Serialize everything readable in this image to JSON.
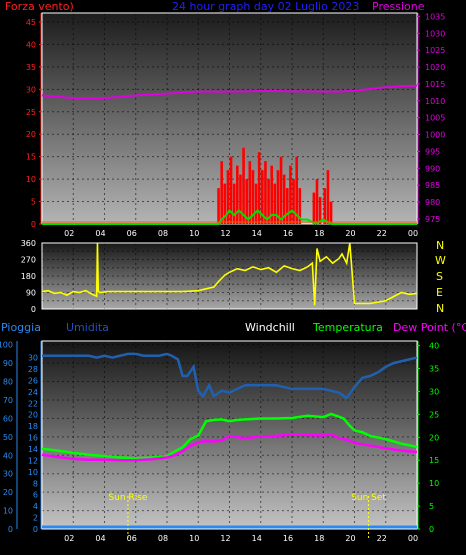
{
  "header": {
    "left_label": "Forza vento)",
    "title": "24 hour graph day  02 Luglio 2023",
    "right_label": "Pressione"
  },
  "wind_dir_labels": [
    "N",
    "W",
    "S",
    "E",
    "N"
  ],
  "bottom_header": {
    "pioggia": "Pioggia",
    "umidita": "Umidita",
    "windchill": "Windchill",
    "temperatura": "Temperatura",
    "dewpoint": "Dew Point (°C)"
  },
  "markers": {
    "sunrise": "Sun Rise",
    "sunset": "Sun Set"
  },
  "colors": {
    "wind": "#ff0000",
    "gust": "#00e000",
    "pressure": "#e000e0",
    "direction": "#ffff00",
    "humidity": "#2060b0",
    "temperature": "#00ff00",
    "dewpoint": "#ff00ff",
    "rain": "#2a8af0",
    "axis_left": "#ff2020",
    "axis_right": "#e000e0",
    "axis_left2": "#2a8af0",
    "axis_right2": "#00ff00",
    "title": "#2020ff"
  },
  "chart_data": [
    {
      "type": "line",
      "panel": "wind-pressure",
      "x_ticks": [
        "02",
        "04",
        "06",
        "08",
        "10",
        "12",
        "14",
        "16",
        "18",
        "20",
        "22",
        "00"
      ],
      "xlim": [
        0,
        24
      ],
      "y_left_ticks": [
        0,
        5,
        10,
        15,
        20,
        25,
        30,
        35,
        40,
        45
      ],
      "ylim_left": [
        0,
        47
      ],
      "y_right_ticks": [
        975,
        980,
        985,
        990,
        995,
        1000,
        1005,
        1010,
        1015,
        1020,
        1025,
        1030,
        1035
      ],
      "ylim_right": [
        973.5,
        1036
      ],
      "series": [
        {
          "role": "pressure",
          "axis": "right",
          "x": [
            0,
            1,
            2,
            3,
            4,
            5,
            6,
            7,
            8,
            9,
            10,
            11,
            12,
            13,
            14,
            15,
            16,
            17,
            18,
            19,
            20,
            21,
            22,
            23,
            24
          ],
          "values": [
            1011.6,
            1011.2,
            1010.8,
            1010.8,
            1010.8,
            1011.2,
            1011.6,
            1011.9,
            1012.1,
            1012.5,
            1012.7,
            1012.7,
            1012.7,
            1012.8,
            1012.9,
            1012.9,
            1012.8,
            1012.8,
            1012.7,
            1012.7,
            1013.0,
            1013.5,
            1014.0,
            1014.3,
            1014.5
          ]
        },
        {
          "role": "wind",
          "axis": "left",
          "x": [
            11.3,
            11.5,
            11.7,
            11.9,
            12.1,
            12.3,
            12.5,
            12.7,
            12.9,
            13.1,
            13.3,
            13.5,
            13.7,
            13.9,
            14.1,
            14.3,
            14.5,
            14.7,
            14.9,
            15.1,
            15.3,
            15.5,
            15.7,
            15.9,
            16.1,
            16.3,
            16.5,
            17.4,
            17.6,
            17.8,
            18.1,
            18.3,
            18.5
          ],
          "values": [
            8,
            14,
            9,
            12,
            15,
            9,
            13,
            11,
            17,
            10,
            14,
            12,
            9,
            16,
            12,
            14,
            10,
            13,
            9,
            12,
            15,
            11,
            8,
            13,
            10,
            15,
            8,
            7,
            10,
            6,
            8,
            12,
            5
          ]
        },
        {
          "role": "gust",
          "axis": "left",
          "x": [
            0,
            11.3,
            11.5,
            11.8,
            12,
            12.3,
            12.6,
            12.9,
            13.2,
            13.5,
            13.8,
            14.1,
            14.4,
            14.7,
            15,
            15.3,
            15.6,
            16,
            16.3,
            16.6,
            17,
            17.5,
            18,
            18.5,
            24
          ],
          "values": [
            0,
            0,
            1,
            2,
            3,
            2,
            3,
            2,
            1,
            2,
            3,
            2,
            1,
            2,
            2,
            1,
            2,
            3,
            2,
            1,
            1,
            0,
            1,
            0,
            0
          ]
        }
      ]
    },
    {
      "type": "line",
      "panel": "wind-direction",
      "x_ticks": [
        "02",
        "04",
        "06",
        "08",
        "10",
        "12",
        "14",
        "16",
        "18",
        "20",
        "22",
        "00"
      ],
      "xlim": [
        0,
        24
      ],
      "y_ticks": [
        0,
        45,
        90,
        135,
        180,
        225,
        270,
        315,
        360
      ],
      "ylim": [
        0,
        360
      ],
      "series": [
        {
          "role": "direction",
          "x": [
            0,
            0.4,
            0.8,
            1.2,
            1.6,
            2,
            2.4,
            2.8,
            3.2,
            3.5,
            3.55,
            3.6,
            3.7,
            4.2,
            5,
            6,
            7,
            8,
            9,
            10,
            10.5,
            11,
            11.3,
            11.7,
            12,
            12.5,
            13,
            13.5,
            14,
            14.5,
            15,
            15.5,
            16,
            16.5,
            17,
            17.3,
            17.45,
            17.6,
            17.8,
            18.2,
            18.6,
            19,
            19.2,
            19.5,
            19.7,
            20,
            20.5,
            21,
            22,
            23,
            23.5,
            24
          ],
          "values": [
            95,
            100,
            85,
            90,
            75,
            95,
            90,
            100,
            80,
            70,
            360,
            95,
            90,
            95,
            95,
            95,
            95,
            95,
            95,
            100,
            110,
            120,
            150,
            185,
            200,
            220,
            210,
            230,
            215,
            225,
            200,
            235,
            220,
            210,
            230,
            250,
            20,
            330,
            260,
            285,
            250,
            275,
            300,
            250,
            360,
            30,
            30,
            30,
            45,
            90,
            80,
            85
          ]
        }
      ]
    },
    {
      "type": "line",
      "panel": "temperature-humidity",
      "x_ticks": [
        "02",
        "04",
        "06",
        "08",
        "10",
        "12",
        "14",
        "16",
        "18",
        "20",
        "22",
        "00"
      ],
      "xlim": [
        0,
        24
      ],
      "y_left_ticks": [
        0,
        10,
        20,
        30,
        40,
        50,
        60,
        70,
        80,
        90,
        100
      ],
      "y_left2_ticks": [
        0,
        2,
        4,
        6,
        8,
        10,
        12,
        14,
        16,
        18,
        20,
        22,
        24,
        26,
        28,
        30
      ],
      "ylim_left": [
        0,
        102
      ],
      "y_right_ticks": [
        0,
        5,
        10,
        15,
        20,
        25,
        30,
        35,
        40
      ],
      "ylim_right": [
        0,
        41
      ],
      "series": [
        {
          "role": "humidity",
          "axis": "left",
          "x": [
            0,
            1,
            2,
            3,
            3.5,
            4,
            4.5,
            5,
            5.5,
            6,
            6.5,
            7,
            7.5,
            8,
            8.3,
            8.7,
            9,
            9.3,
            9.7,
            10,
            10.3,
            10.7,
            11,
            11.5,
            12,
            12.5,
            13,
            14,
            15,
            16,
            17,
            18,
            19,
            19.5,
            20,
            20.5,
            21,
            21.5,
            22,
            22.5,
            23,
            24
          ],
          "values": [
            94,
            94,
            94,
            94,
            93,
            94,
            93,
            94,
            95,
            95,
            94,
            94,
            94,
            95,
            94,
            92,
            83,
            83,
            88,
            75,
            72,
            78,
            72,
            75,
            74,
            76,
            78,
            78,
            78,
            76,
            76,
            76,
            74,
            71,
            77,
            82,
            83,
            85,
            88,
            90,
            91,
            93
          ]
        },
        {
          "role": "temperature",
          "axis": "right",
          "x": [
            0,
            1,
            2,
            3,
            4,
            5,
            6,
            7,
            8,
            8.5,
            9,
            9.5,
            10,
            10.5,
            11,
            11.5,
            12,
            12.5,
            13,
            14,
            15,
            16,
            17,
            18,
            18.5,
            19,
            19.3,
            19.7,
            20,
            20.5,
            21,
            22,
            23,
            24
          ],
          "values": [
            17.5,
            17.1,
            16.6,
            16.2,
            15.9,
            15.6,
            15.4,
            15.6,
            15.9,
            16.9,
            17.8,
            19.6,
            20.4,
            23.5,
            23.8,
            23.9,
            23.5,
            23.8,
            23.9,
            24.1,
            24.1,
            24.2,
            24.7,
            24.4,
            25.1,
            24.5,
            24.1,
            22.5,
            21.5,
            21.1,
            20.3,
            19.6,
            18.6,
            17.9
          ]
        },
        {
          "role": "dewpoint",
          "axis": "right",
          "x": [
            0,
            1,
            2,
            3,
            4,
            5,
            6,
            7,
            8,
            8.5,
            9,
            9.5,
            10,
            10.5,
            11,
            11.5,
            12,
            13,
            14,
            15,
            16,
            17,
            18,
            18.5,
            19,
            19.5,
            20,
            21,
            22,
            23,
            24
          ],
          "values": [
            16.2,
            15.7,
            15.3,
            15.1,
            15.1,
            15.0,
            15.0,
            15.2,
            15.6,
            16.1,
            17.0,
            18.1,
            18.9,
            19.2,
            19.1,
            19.3,
            20.3,
            19.8,
            20.2,
            20.3,
            20.6,
            20.5,
            20.4,
            20.7,
            19.8,
            19.5,
            18.8,
            18.2,
            17.6,
            17.1,
            16.8
          ]
        },
        {
          "role": "rain",
          "axis": "left2",
          "x": [
            0,
            24
          ],
          "values": [
            0,
            0
          ]
        }
      ],
      "annotations": {
        "sunrise_x": 5.5,
        "sunset_x": 20.9
      }
    }
  ]
}
